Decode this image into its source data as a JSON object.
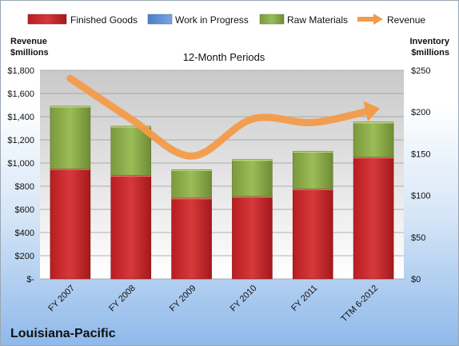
{
  "company_name": "Louisiana-Pacific",
  "chart_data": {
    "type": "bar",
    "stacked": true,
    "subtitle": "12-Month Periods",
    "categories": [
      "FY 2007",
      "FY 2008",
      "FY 2009",
      "FY 2010",
      "FY 2011",
      "TTM 6-2012"
    ],
    "series": [
      {
        "name": "Finished Goods",
        "axis": "right",
        "color": "#c8262b",
        "values": [
          132,
          124,
          97,
          99,
          108,
          146
        ]
      },
      {
        "name": "Work in Progress",
        "axis": "right",
        "color": "#5b8fd4",
        "values": [
          0,
          0,
          0,
          0,
          0,
          0
        ]
      },
      {
        "name": "Raw Materials",
        "axis": "right",
        "color": "#8fb04a",
        "values": [
          75,
          59,
          34,
          44,
          45,
          42
        ]
      },
      {
        "name": "Revenue",
        "axis": "left",
        "type": "line",
        "color": "#f39b4a",
        "values": [
          1730,
          1380,
          1060,
          1380,
          1350,
          1460
        ]
      }
    ],
    "left_axis": {
      "label_line1": "Revenue",
      "label_line2": "$millions",
      "ylim": [
        0,
        1800
      ],
      "ticks": [
        "$-",
        "$200",
        "$400",
        "$600",
        "$800",
        "$1,000",
        "$1,200",
        "$1,400",
        "$1,600",
        "$1,800"
      ]
    },
    "right_axis": {
      "label_line1": "Inventory",
      "label_line2": "$millions",
      "ylim": [
        0,
        250
      ],
      "ticks": [
        "$0",
        "$50",
        "$100",
        "$150",
        "$200",
        "$250"
      ]
    },
    "legend_position": "top"
  }
}
